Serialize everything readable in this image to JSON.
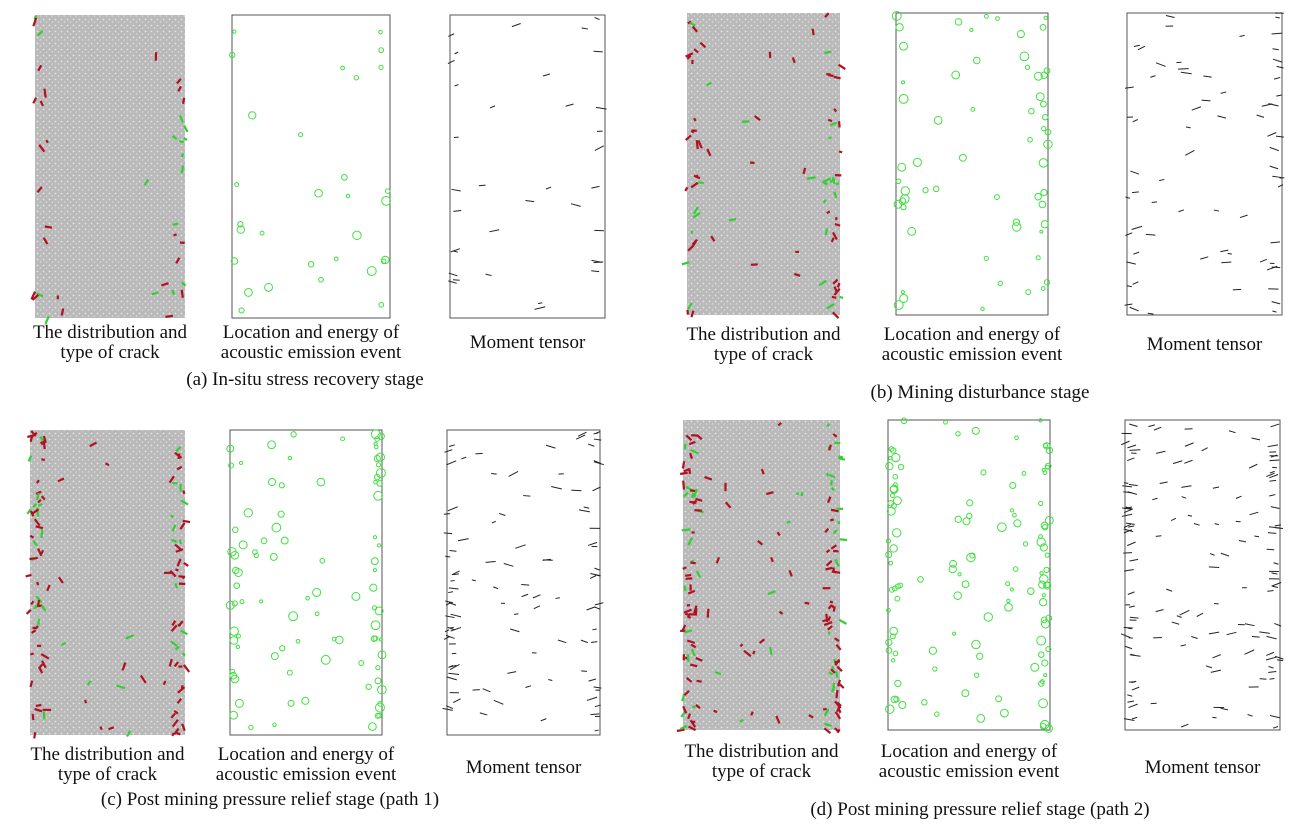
{
  "panels": [
    {
      "caption": "(a) In-situ stress recovery stage",
      "subfigures": [
        {
          "label": [
            "The distribution and",
            "type of crack"
          ]
        },
        {
          "label": [
            "Location and energy of",
            "acoustic emission event"
          ]
        },
        {
          "label": [
            "Moment tensor"
          ]
        }
      ]
    },
    {
      "caption": "(b) Mining disturbance stage",
      "subfigures": [
        {
          "label": [
            "The distribution and",
            "type of crack"
          ]
        },
        {
          "label": [
            "Location and energy of",
            "acoustic emission event"
          ]
        },
        {
          "label": [
            "Moment tensor"
          ]
        }
      ]
    },
    {
      "caption": "(c) Post mining pressure relief stage (path 1)",
      "subfigures": [
        {
          "label": [
            "The distribution and",
            "type of crack"
          ]
        },
        {
          "label": [
            "Location and energy of",
            "acoustic emission event"
          ]
        },
        {
          "label": [
            "Moment tensor"
          ]
        }
      ]
    },
    {
      "caption": "(d) Post mining pressure relief stage (path 2)",
      "subfigures": [
        {
          "label": [
            "The distribution and",
            "type of crack"
          ]
        },
        {
          "label": [
            "Location and energy of",
            "acoustic emission event"
          ]
        },
        {
          "label": [
            "Moment tensor"
          ]
        }
      ]
    }
  ]
}
